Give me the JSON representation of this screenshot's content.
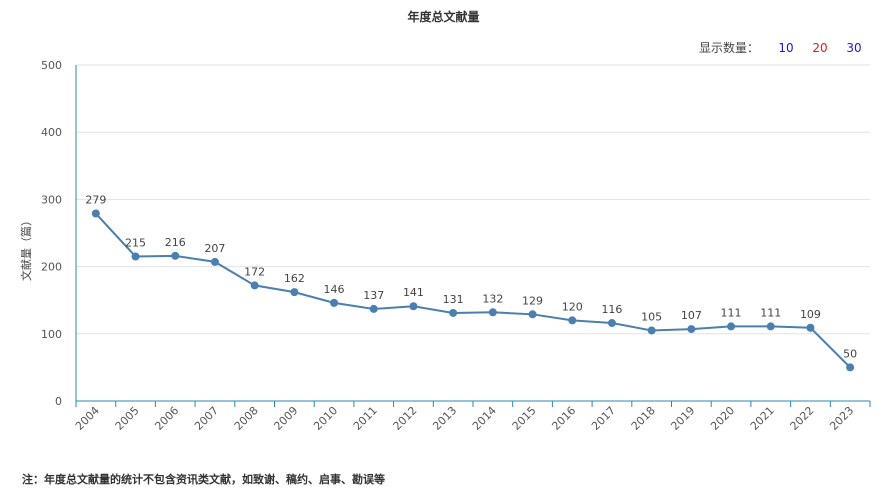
{
  "chart_data": {
    "type": "line",
    "title": "年度总文献量",
    "ylabel": "文献量（篇）",
    "xlabel": "",
    "categories": [
      "2004",
      "2005",
      "2006",
      "2007",
      "2008",
      "2009",
      "2010",
      "2011",
      "2012",
      "2013",
      "2014",
      "2015",
      "2016",
      "2017",
      "2018",
      "2019",
      "2020",
      "2021",
      "2022",
      "2023"
    ],
    "values": [
      279,
      215,
      216,
      207,
      172,
      162,
      146,
      137,
      141,
      131,
      132,
      129,
      120,
      116,
      105,
      107,
      111,
      111,
      109,
      50
    ],
    "ylim": [
      0,
      500
    ],
    "yticks": [
      0,
      100,
      200,
      300,
      400,
      500
    ],
    "grid": true,
    "color": "#4a7fb0"
  },
  "display_count": {
    "label": "显示数量：",
    "options": [
      {
        "text": "10",
        "color": "#1a1adb"
      },
      {
        "text": "20",
        "color": "#e02020"
      },
      {
        "text": "30",
        "color": "#1a1adb"
      }
    ]
  },
  "footnote": "注：年度总文献量的统计不包含资讯类文献，如致谢、稿约、启事、勘误等"
}
